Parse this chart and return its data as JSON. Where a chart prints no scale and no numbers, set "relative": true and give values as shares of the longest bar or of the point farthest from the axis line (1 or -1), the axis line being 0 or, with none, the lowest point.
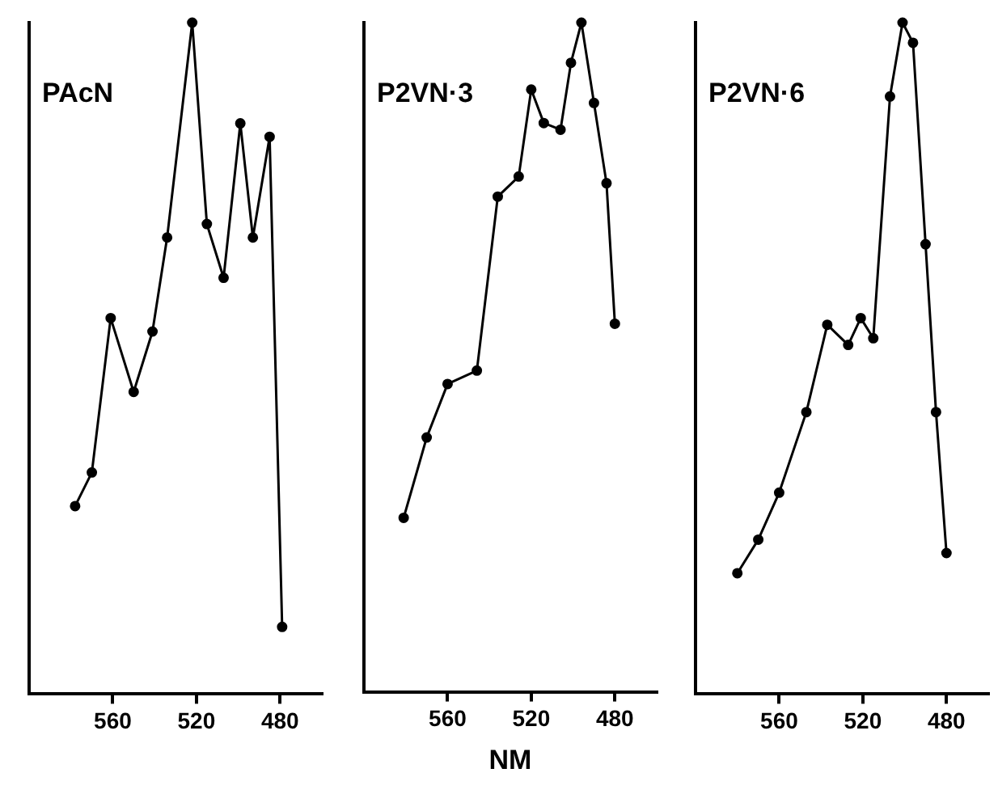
{
  "chart_data": [
    {
      "type": "line",
      "title": "PAcN",
      "relative": true,
      "xlim": [
        600,
        460
      ],
      "xticks": [
        560,
        520,
        480
      ],
      "grid": false,
      "legend": false,
      "marker": "circle",
      "series": [
        {
          "color": "#000000",
          "x": [
            578,
            570,
            561,
            550,
            541,
            534,
            522,
            515,
            507,
            499,
            493,
            485,
            479
          ],
          "values": [
            0.28,
            0.33,
            0.56,
            0.45,
            0.54,
            0.68,
            1.0,
            0.7,
            0.62,
            0.85,
            0.68,
            0.83,
            0.1
          ]
        }
      ]
    },
    {
      "type": "line",
      "title": "P2VN·3",
      "xlabel": "NM",
      "relative": true,
      "xlim": [
        600,
        460
      ],
      "xticks": [
        560,
        520,
        480
      ],
      "grid": false,
      "legend": false,
      "marker": "circle",
      "series": [
        {
          "color": "#000000",
          "x": [
            581,
            570,
            560,
            546,
            536,
            526,
            520,
            514,
            506,
            501,
            496,
            490,
            484,
            480
          ],
          "values": [
            0.26,
            0.38,
            0.46,
            0.48,
            0.74,
            0.77,
            0.9,
            0.85,
            0.84,
            0.94,
            1.0,
            0.88,
            0.76,
            0.55
          ]
        }
      ]
    },
    {
      "type": "line",
      "title": "P2VN·6",
      "relative": true,
      "xlim": [
        600,
        460
      ],
      "xticks": [
        560,
        520,
        480
      ],
      "grid": false,
      "legend": false,
      "marker": "circle",
      "series": [
        {
          "color": "#000000",
          "x": [
            580,
            570,
            560,
            547,
            537,
            527,
            521,
            515,
            507,
            501,
            496,
            490,
            485,
            480
          ],
          "values": [
            0.18,
            0.23,
            0.3,
            0.42,
            0.55,
            0.52,
            0.56,
            0.53,
            0.89,
            1.0,
            0.97,
            0.67,
            0.42,
            0.21
          ]
        }
      ]
    }
  ]
}
